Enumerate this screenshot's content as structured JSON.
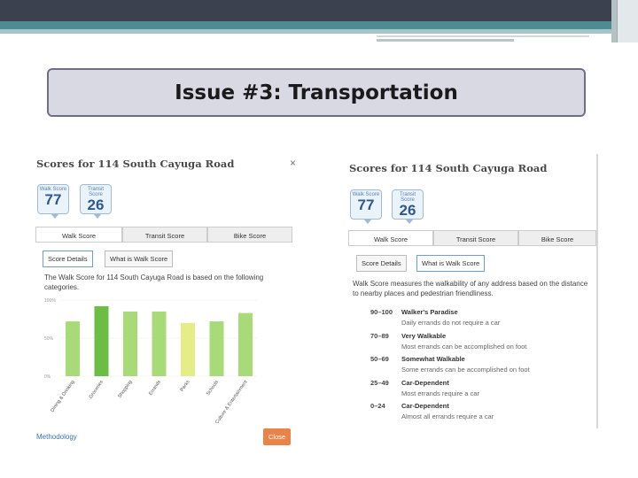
{
  "slide": {
    "title": "Issue #3: Transportation"
  },
  "left_panel": {
    "title": "Scores for 114 South Cayuga Road",
    "close_symbol": "×",
    "walk_badge": {
      "label": "Walk Score",
      "value": "77"
    },
    "transit_badge": {
      "label": "Transit Score",
      "value": "26"
    },
    "tabs": [
      "Walk Score",
      "Transit Score",
      "Bike Score"
    ],
    "sub_buttons": [
      "Score Details",
      "What is Walk Score"
    ],
    "description": "The Walk Score for 114 South Cayuga Road is based on the following categories.",
    "methodology_link": "Methodology",
    "close_button": "Close"
  },
  "chart_data": {
    "type": "bar",
    "y_ticks": [
      "100%",
      "50%",
      "0%"
    ],
    "ylim": [
      0,
      100
    ],
    "categories": [
      "Dining & Drinking",
      "Groceries",
      "Shopping",
      "Errands",
      "Parks",
      "Schools",
      "Culture & Entertainment"
    ],
    "values": [
      72,
      92,
      85,
      85,
      70,
      72,
      83
    ],
    "colors": [
      "#a8db78",
      "#6cbd45",
      "#a8db78",
      "#a8db78",
      "#e4ee88",
      "#a8db78",
      "#a8db78"
    ]
  },
  "right_panel": {
    "title": "Scores for 114 South Cayuga Road",
    "walk_badge": {
      "label": "Walk Score",
      "value": "77"
    },
    "transit_badge": {
      "label": "Transit Score",
      "value": "26"
    },
    "tabs": [
      "Walk Score",
      "Transit Score",
      "Bike Score"
    ],
    "sub_buttons": [
      "Score Details",
      "What is Walk Score"
    ],
    "description": "Walk Score measures the walkability of any address based on the distance to nearby places and pedestrian friendliness.",
    "ranges": [
      {
        "range": "90–100",
        "label": "Walker's Paradise",
        "desc": "Daily errands do not require a car"
      },
      {
        "range": "70–89",
        "label": "Very Walkable",
        "desc": "Most errands can be accomplished on foot"
      },
      {
        "range": "50–69",
        "label": "Somewhat Walkable",
        "desc": "Some errands can be accomplished on foot"
      },
      {
        "range": "25–49",
        "label": "Car-Dependent",
        "desc": "Most errands require a car"
      },
      {
        "range": "0–24",
        "label": "Car-Dependent",
        "desc": "Almost all errands require a car"
      }
    ]
  }
}
